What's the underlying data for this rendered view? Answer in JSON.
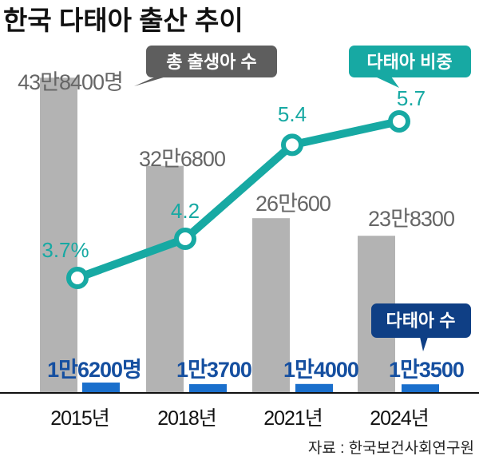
{
  "chart_data": {
    "type": "bar",
    "title": "한국 다태아 출산 추이",
    "categories": [
      "2015년",
      "2018년",
      "2021년",
      "2024년"
    ],
    "series": [
      {
        "name": "총 출생아 수",
        "values": [
          438400,
          326800,
          260600,
          238300
        ],
        "labels": [
          "43만8400명",
          "32만6800",
          "26만600",
          "23만8300"
        ],
        "color": "#b3b3b3",
        "type": "bar"
      },
      {
        "name": "다태아 수",
        "values": [
          16200,
          13700,
          14000,
          13500
        ],
        "labels": [
          "1만6200명",
          "1만3700",
          "1만4000",
          "1만3500"
        ],
        "color": "#1a6fcc",
        "type": "bar"
      },
      {
        "name": "다태아 비중",
        "values": [
          3.7,
          4.2,
          5.4,
          5.7
        ],
        "labels": [
          "3.7%",
          "4.2",
          "5.4",
          "5.7"
        ],
        "color": "#17a9a3",
        "type": "line"
      }
    ],
    "legend_callouts": {
      "total": "총 출생아 수",
      "share": "다태아 비중",
      "multi": "다태아 수"
    },
    "source": "자료 : 한국보건사회연구원"
  },
  "colors": {
    "total_callout": "#5e5e5e",
    "share_callout": "#17a9a3",
    "multi_callout": "#0f3f85",
    "multi_label": "#154fa0",
    "total_label": "#666666"
  }
}
